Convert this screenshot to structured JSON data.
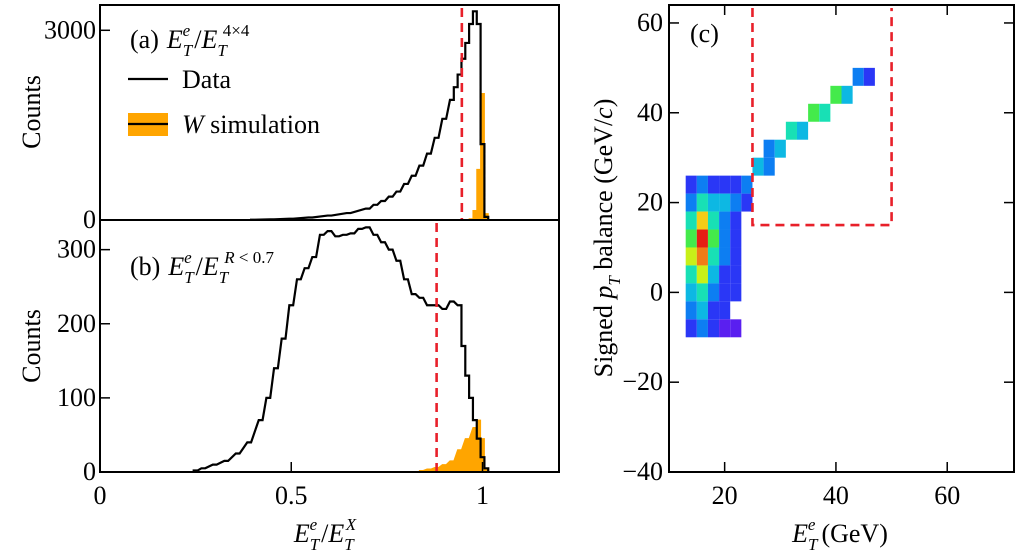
{
  "chart_data": [
    {
      "panel": "(a)",
      "type": "histogram",
      "title_prefix": "(a)",
      "title_tex": "E_T^e/E_T^{4×4}",
      "ylabel": "Counts",
      "xlim": [
        0,
        1.2
      ],
      "ylim": [
        0,
        3400
      ],
      "yticks": [
        {
          "value": 0,
          "label": "0"
        },
        {
          "value": 3000,
          "label": "3000"
        }
      ],
      "cut_line_x": 0.946,
      "legend": [
        {
          "key": "data",
          "label": "Data"
        },
        {
          "key": "sim",
          "label_italic": "W",
          "label_rest": " simulation"
        }
      ],
      "colors": {
        "data": "#000000",
        "sim": "#ffa500",
        "cut": "#e8202a"
      },
      "bin_width": 0.01,
      "data_bins_x": [
        0.92,
        0.93,
        0.94,
        0.95,
        0.96,
        0.97,
        0.98,
        0.99,
        1.0,
        1.01
      ],
      "data": {
        "x": [
          0.4,
          0.45,
          0.5,
          0.55,
          0.6,
          0.65,
          0.7,
          0.72,
          0.74,
          0.76,
          0.78,
          0.8,
          0.82,
          0.84,
          0.86,
          0.88,
          0.9,
          0.92,
          0.93,
          0.94,
          0.95,
          0.96,
          0.97,
          0.98,
          0.99,
          1.0,
          1.01
        ],
        "y": [
          5,
          10,
          20,
          40,
          70,
          110,
          180,
          240,
          300,
          370,
          450,
          570,
          700,
          860,
          1050,
          1300,
          1600,
          1900,
          2100,
          2300,
          2550,
          2800,
          3100,
          3300,
          3100,
          1200,
          50
        ]
      },
      "sim": {
        "x": [
          0.96,
          0.97,
          0.98,
          0.99,
          1.0,
          1.01
        ],
        "y": [
          0,
          20,
          150,
          800,
          2000,
          100
        ]
      }
    },
    {
      "panel": "(b)",
      "type": "histogram",
      "title_prefix": "(b)",
      "title_tex": "E_T^e/E_T^{R<0.7}",
      "ylabel": "Counts",
      "xlabel_tex": "E_T^e/E_T^X",
      "xlim": [
        0,
        1.2
      ],
      "xticks": [
        {
          "value": 0,
          "label": "0"
        },
        {
          "value": 0.5,
          "label": "0.5"
        },
        {
          "value": 1,
          "label": "1"
        }
      ],
      "ylim": [
        0,
        340
      ],
      "yticks": [
        {
          "value": 0,
          "label": "0"
        },
        {
          "value": 100,
          "label": "100"
        },
        {
          "value": 200,
          "label": "200"
        },
        {
          "value": 300,
          "label": "300"
        }
      ],
      "cut_line_x": 0.88,
      "colors": {
        "data": "#000000",
        "sim": "#ffa500",
        "cut": "#e8202a"
      },
      "bin_width": 0.01,
      "data": {
        "x": [
          0.25,
          0.27,
          0.3,
          0.33,
          0.36,
          0.39,
          0.42,
          0.44,
          0.46,
          0.48,
          0.5,
          0.52,
          0.54,
          0.56,
          0.58,
          0.6,
          0.62,
          0.64,
          0.66,
          0.68,
          0.7,
          0.72,
          0.74,
          0.76,
          0.78,
          0.8,
          0.82,
          0.84,
          0.86,
          0.88,
          0.9,
          0.92,
          0.94,
          0.95,
          0.96,
          0.97,
          0.98,
          0.99,
          1.0,
          1.01
        ],
        "y": [
          2,
          5,
          10,
          15,
          25,
          40,
          70,
          100,
          140,
          180,
          225,
          260,
          275,
          290,
          320,
          325,
          318,
          320,
          322,
          328,
          330,
          320,
          310,
          300,
          285,
          260,
          240,
          235,
          225,
          225,
          220,
          230,
          225,
          170,
          130,
          100,
          70,
          45,
          20,
          5
        ]
      },
      "sim": {
        "x": [
          0.84,
          0.86,
          0.88,
          0.9,
          0.92,
          0.94,
          0.96,
          0.98,
          0.99,
          1.0,
          1.01
        ],
        "y": [
          2,
          4,
          6,
          10,
          15,
          30,
          45,
          60,
          70,
          45,
          5
        ]
      }
    },
    {
      "panel": "(c)",
      "type": "heatmap",
      "title": "(c)",
      "xlabel_tex": "E_T^e (GeV)",
      "ylabel_tex": "Signed p_T balance (GeV/c)",
      "xlim": [
        10,
        72
      ],
      "ylim": [
        -40,
        64
      ],
      "xticks": [
        {
          "value": 20,
          "label": "20"
        },
        {
          "value": 40,
          "label": "40"
        },
        {
          "value": 60,
          "label": "60"
        }
      ],
      "yticks": [
        {
          "value": -40,
          "label": "−40"
        },
        {
          "value": -20,
          "label": "−20"
        },
        {
          "value": 0,
          "label": "0"
        },
        {
          "value": 20,
          "label": "20"
        },
        {
          "value": 40,
          "label": "40"
        },
        {
          "value": 60,
          "label": "60"
        }
      ],
      "bin_width_x": 2,
      "bin_width_y": 4,
      "colors": {
        "cut": "#e8202a"
      },
      "cut_box": {
        "x": [
          25,
          50
        ],
        "y_low": 15
      },
      "palette": [
        "#5a1ff0",
        "#2a37f6",
        "#0d7ef2",
        "#0db8e3",
        "#18e0b5",
        "#44ea4b",
        "#c8f018",
        "#f6cc15",
        "#f07c16",
        "#e51e14"
      ],
      "cells": [
        {
          "x": 14,
          "y": 24,
          "v": 2
        },
        {
          "x": 16,
          "y": 24,
          "v": 3
        },
        {
          "x": 18,
          "y": 24,
          "v": 2
        },
        {
          "x": 20,
          "y": 24,
          "v": 2
        },
        {
          "x": 22,
          "y": 24,
          "v": 2
        },
        {
          "x": 14,
          "y": 20,
          "v": 3
        },
        {
          "x": 16,
          "y": 20,
          "v": 5
        },
        {
          "x": 18,
          "y": 20,
          "v": 4
        },
        {
          "x": 20,
          "y": 20,
          "v": 4
        },
        {
          "x": 22,
          "y": 20,
          "v": 3
        },
        {
          "x": 24,
          "y": 20,
          "v": 2
        },
        {
          "x": 14,
          "y": 16,
          "v": 5
        },
        {
          "x": 16,
          "y": 16,
          "v": 8
        },
        {
          "x": 18,
          "y": 16,
          "v": 5
        },
        {
          "x": 20,
          "y": 16,
          "v": 3
        },
        {
          "x": 22,
          "y": 16,
          "v": 2
        },
        {
          "x": 14,
          "y": 12,
          "v": 6
        },
        {
          "x": 16,
          "y": 12,
          "v": 10
        },
        {
          "x": 18,
          "y": 12,
          "v": 6
        },
        {
          "x": 20,
          "y": 12,
          "v": 3
        },
        {
          "x": 22,
          "y": 12,
          "v": 2
        },
        {
          "x": 14,
          "y": 8,
          "v": 7
        },
        {
          "x": 16,
          "y": 8,
          "v": 9
        },
        {
          "x": 18,
          "y": 8,
          "v": 5
        },
        {
          "x": 20,
          "y": 8,
          "v": 3
        },
        {
          "x": 22,
          "y": 8,
          "v": 2
        },
        {
          "x": 14,
          "y": 4,
          "v": 5
        },
        {
          "x": 16,
          "y": 4,
          "v": 7
        },
        {
          "x": 18,
          "y": 4,
          "v": 4
        },
        {
          "x": 20,
          "y": 4,
          "v": 2
        },
        {
          "x": 22,
          "y": 4,
          "v": 2
        },
        {
          "x": 14,
          "y": 0,
          "v": 4
        },
        {
          "x": 16,
          "y": 0,
          "v": 5
        },
        {
          "x": 18,
          "y": 0,
          "v": 3
        },
        {
          "x": 20,
          "y": 0,
          "v": 2
        },
        {
          "x": 22,
          "y": 0,
          "v": 2
        },
        {
          "x": 14,
          "y": -4,
          "v": 3
        },
        {
          "x": 16,
          "y": -4,
          "v": 4
        },
        {
          "x": 18,
          "y": -4,
          "v": 2
        },
        {
          "x": 20,
          "y": -4,
          "v": 2
        },
        {
          "x": 14,
          "y": -8,
          "v": 2
        },
        {
          "x": 16,
          "y": -8,
          "v": 3
        },
        {
          "x": 18,
          "y": -8,
          "v": 2
        },
        {
          "x": 20,
          "y": -8,
          "v": 1
        },
        {
          "x": 22,
          "y": -8,
          "v": 1
        },
        {
          "x": 24,
          "y": 24,
          "v": 3
        },
        {
          "x": 26,
          "y": 28,
          "v": 4
        },
        {
          "x": 28,
          "y": 28,
          "v": 3
        },
        {
          "x": 28,
          "y": 32,
          "v": 3
        },
        {
          "x": 30,
          "y": 32,
          "v": 4
        },
        {
          "x": 32,
          "y": 36,
          "v": 5
        },
        {
          "x": 34,
          "y": 36,
          "v": 4
        },
        {
          "x": 36,
          "y": 40,
          "v": 6
        },
        {
          "x": 38,
          "y": 40,
          "v": 5
        },
        {
          "x": 40,
          "y": 44,
          "v": 6
        },
        {
          "x": 42,
          "y": 44,
          "v": 4
        },
        {
          "x": 44,
          "y": 48,
          "v": 3
        },
        {
          "x": 46,
          "y": 48,
          "v": 2
        }
      ]
    }
  ]
}
